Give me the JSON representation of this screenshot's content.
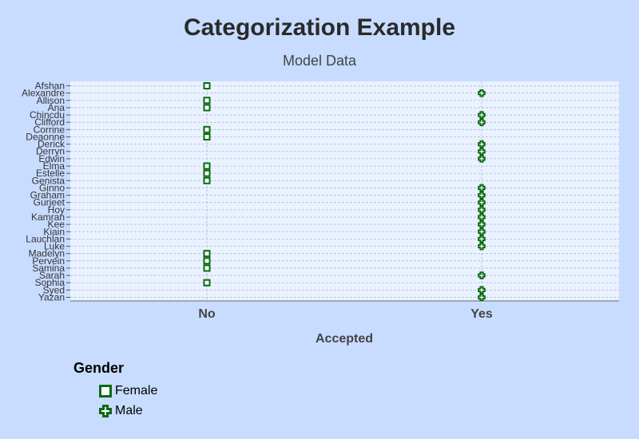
{
  "chart_data": {
    "type": "scatter",
    "title": "Categorization Example",
    "subtitle": "Model Data",
    "xlabel": "Accepted",
    "ylabel": "",
    "x_categories": [
      "No",
      "Yes"
    ],
    "y_categories": [
      "Afshan",
      "Alexandre",
      "Allison",
      "Ana",
      "Chincdu",
      "Clifford",
      "Corrine",
      "Deaonne",
      "Derick",
      "Derryn",
      "Edwin",
      "Elma",
      "Estelle",
      "Genista",
      "Ginno",
      "Graham",
      "Gurjeet",
      "Hoy",
      "Kamran",
      "Kee",
      "Kiain",
      "Lauchlan",
      "Luke",
      "Madelyn",
      "Pervein",
      "Samina",
      "Sarah",
      "Sophia",
      "Syed",
      "Yazan"
    ],
    "grid": true,
    "legend_title": "Gender",
    "legend_position": "bottom-left",
    "series": [
      {
        "name": "Female",
        "marker": "square",
        "points": [
          {
            "x": "No",
            "y": "Afshan"
          },
          {
            "x": "No",
            "y": "Allison"
          },
          {
            "x": "No",
            "y": "Ana"
          },
          {
            "x": "No",
            "y": "Corrine"
          },
          {
            "x": "No",
            "y": "Deaonne"
          },
          {
            "x": "No",
            "y": "Elma"
          },
          {
            "x": "No",
            "y": "Estelle"
          },
          {
            "x": "No",
            "y": "Genista"
          },
          {
            "x": "No",
            "y": "Madelyn"
          },
          {
            "x": "No",
            "y": "Pervein"
          },
          {
            "x": "No",
            "y": "Samina"
          },
          {
            "x": "No",
            "y": "Sophia"
          }
        ]
      },
      {
        "name": "Male",
        "marker": "cross",
        "points": [
          {
            "x": "Yes",
            "y": "Alexandre"
          },
          {
            "x": "Yes",
            "y": "Chincdu"
          },
          {
            "x": "Yes",
            "y": "Clifford"
          },
          {
            "x": "Yes",
            "y": "Derick"
          },
          {
            "x": "Yes",
            "y": "Derryn"
          },
          {
            "x": "Yes",
            "y": "Edwin"
          },
          {
            "x": "Yes",
            "y": "Ginno"
          },
          {
            "x": "Yes",
            "y": "Graham"
          },
          {
            "x": "Yes",
            "y": "Gurjeet"
          },
          {
            "x": "Yes",
            "y": "Hoy"
          },
          {
            "x": "Yes",
            "y": "Kamran"
          },
          {
            "x": "Yes",
            "y": "Kee"
          },
          {
            "x": "Yes",
            "y": "Kiain"
          },
          {
            "x": "Yes",
            "y": "Lauchlan"
          },
          {
            "x": "Yes",
            "y": "Luke"
          },
          {
            "x": "Yes",
            "y": "Sarah"
          },
          {
            "x": "Yes",
            "y": "Syed"
          },
          {
            "x": "Yes",
            "y": "Yazan"
          }
        ]
      }
    ]
  },
  "colors": {
    "page_background": "#c8dcff",
    "plot_background": "#eaf2ff",
    "gridline": "#a9bcd6",
    "marker": "#0b6b12",
    "marker_fill": "#ffffff"
  }
}
